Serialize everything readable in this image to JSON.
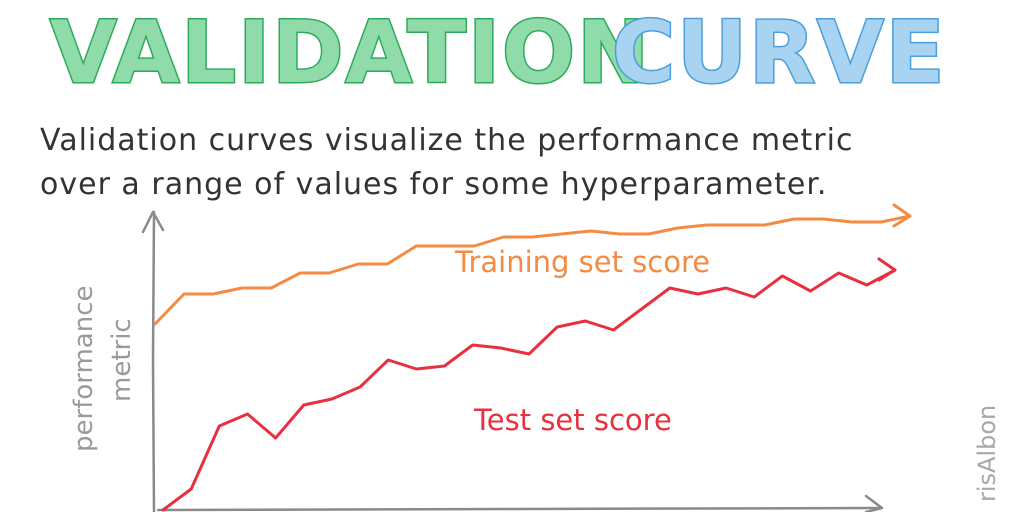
{
  "title": {
    "word1": "VALIDATION",
    "word2": "CURVE"
  },
  "caption": {
    "line1": "Validation curves visualize the performance metric",
    "line2": "over a range of values for some hyperparameter."
  },
  "axis": {
    "y_label_line1": "performance",
    "y_label_line2": "metric"
  },
  "credit": "risAlbon",
  "colors": {
    "title_green": "#2eaa5c",
    "title_green_light": "#8fdcaa",
    "title_blue": "#4a9fdc",
    "title_blue_light": "#a8d4f2",
    "train": "#f58a42",
    "test": "#e8303f",
    "axis": "#8a8a8a"
  },
  "chart_data": {
    "type": "line",
    "series": [
      {
        "name": "Training set score",
        "values": [
          0.62,
          0.72,
          0.72,
          0.74,
          0.74,
          0.79,
          0.79,
          0.82,
          0.82,
          0.88,
          0.88,
          0.88,
          0.91,
          0.91,
          0.92,
          0.93,
          0.92,
          0.92,
          0.94,
          0.95,
          0.95,
          0.95,
          0.97,
          0.97,
          0.96,
          0.96,
          0.98
        ]
      },
      {
        "name": "Test set score",
        "values": [
          0.0,
          0.07,
          0.28,
          0.32,
          0.24,
          0.35,
          0.37,
          0.41,
          0.5,
          0.47,
          0.48,
          0.55,
          0.54,
          0.52,
          0.61,
          0.63,
          0.6,
          0.67,
          0.74,
          0.72,
          0.74,
          0.71,
          0.78,
          0.73,
          0.79,
          0.75,
          0.8
        ]
      }
    ]
  }
}
